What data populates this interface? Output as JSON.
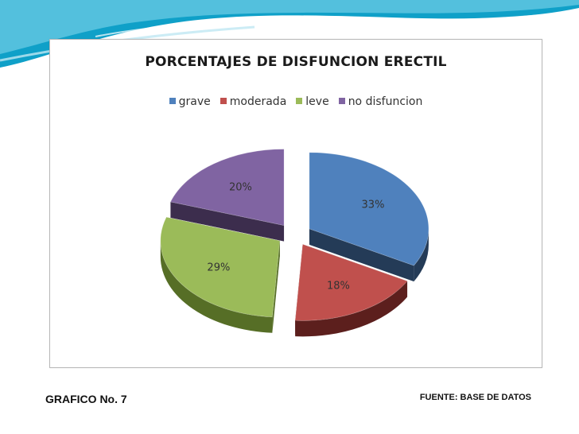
{
  "chart_data": {
    "type": "pie",
    "title": "PORCENTAJES  DE DISFUNCION ERECTIL",
    "legend_position": "top",
    "style": "3d-exploded",
    "slices": [
      {
        "name": "grave",
        "value": 33,
        "label": "33%",
        "color": "#4f81bd",
        "side_color": "#243b57"
      },
      {
        "name": "moderada",
        "value": 18,
        "label": "18%",
        "color": "#c0504d",
        "side_color": "#5c1f1d"
      },
      {
        "name": "leve",
        "value": 29,
        "label": "29%",
        "color": "#9bbb59",
        "side_color": "#566e26"
      },
      {
        "name": "no disfuncion",
        "value": 20,
        "label": "20%",
        "color": "#8064a2",
        "side_color": "#3c2d4d"
      }
    ]
  },
  "footer": {
    "left_label": "GRAFICO No. 7",
    "right_label": "FUENTE: BASE DE DATOS"
  },
  "theme": {
    "wave_colors": [
      "#0fa0c8",
      "#5fc6e0",
      "#bfe7f2"
    ]
  }
}
